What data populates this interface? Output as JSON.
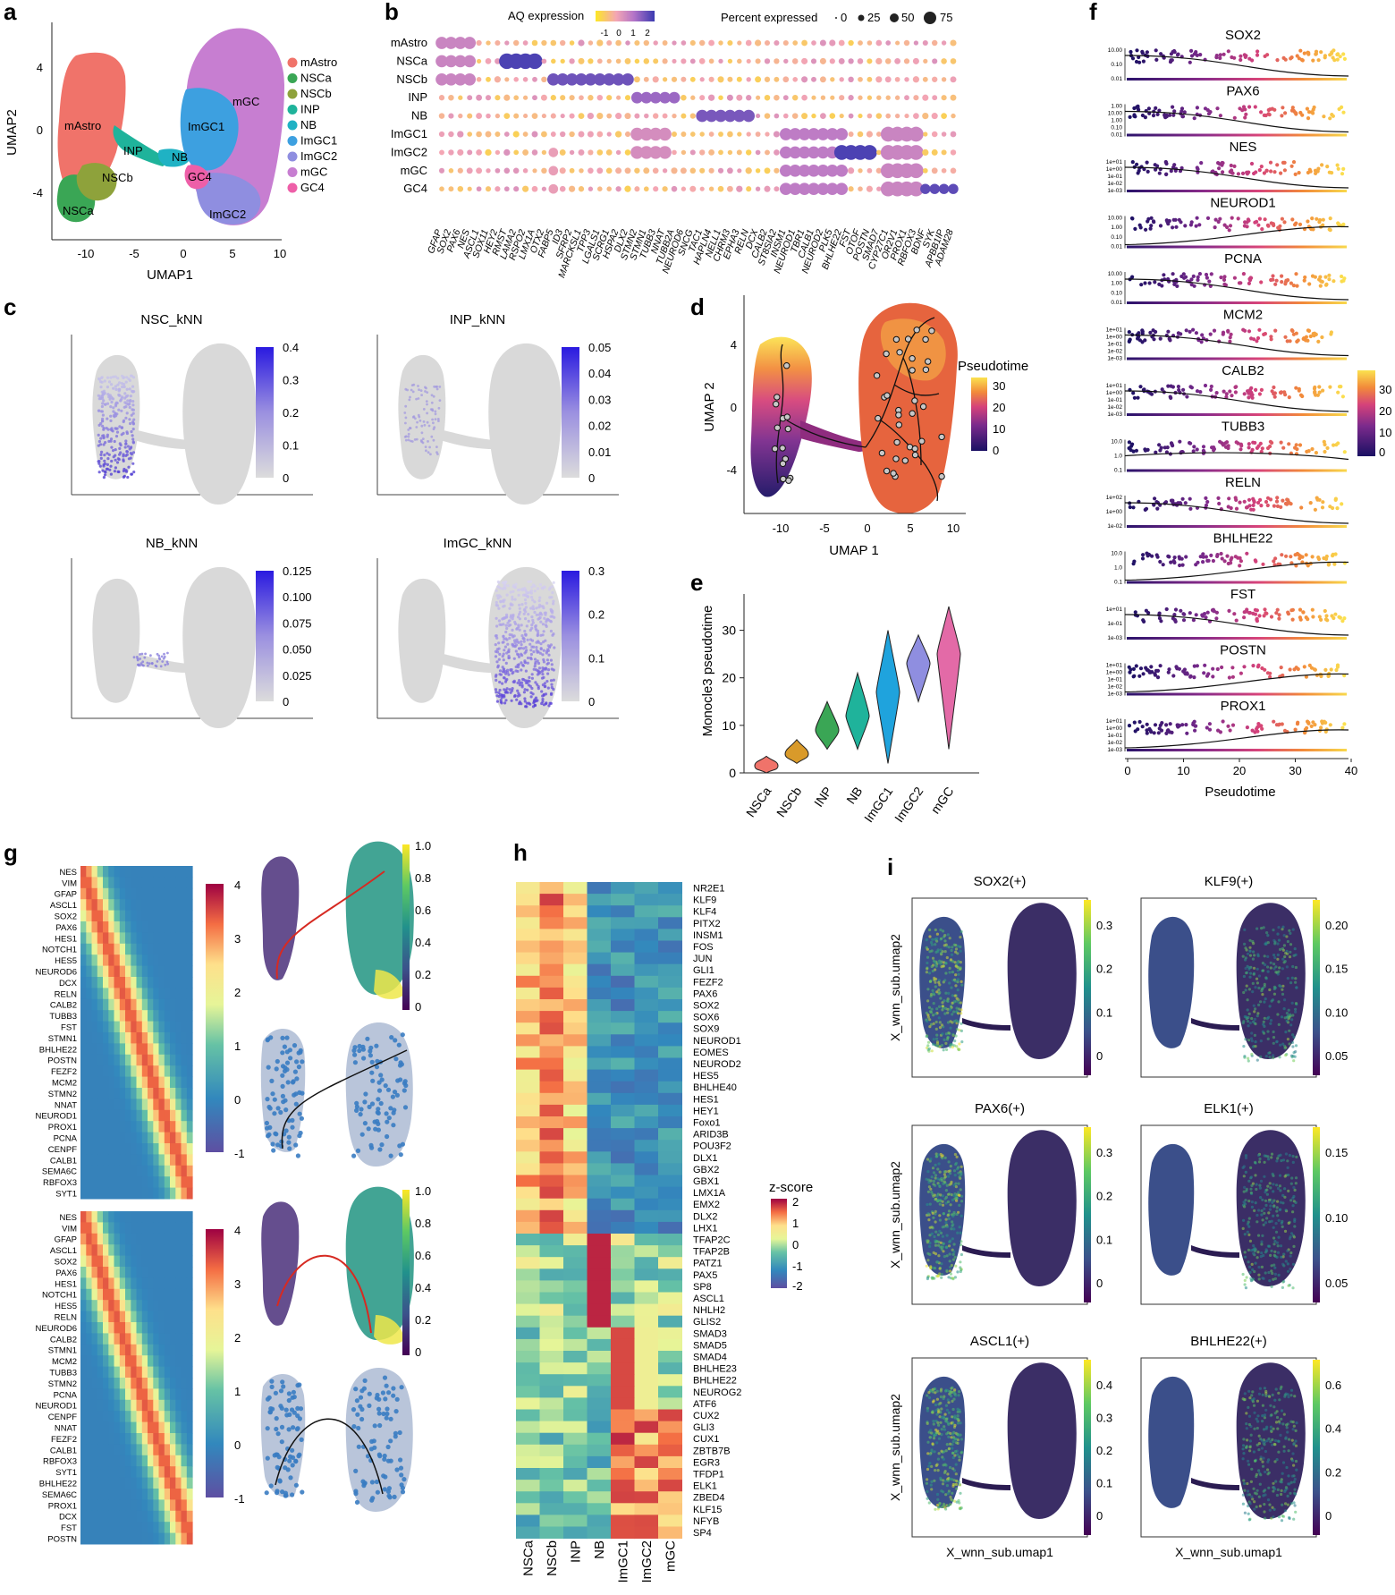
{
  "colors": {
    "mAstro": "#f0736a",
    "NSCa": "#3aa655",
    "NSCb": "#8ea23b",
    "INP": "#1fb39b",
    "NB": "#1fb2c4",
    "ImGC1": "#3da0e0",
    "ImGC2": "#8f8ee0",
    "mGC": "#c77ed1",
    "GC4": "#ee5fa8",
    "grey": "#d8d8d8",
    "knn_hi": "#3a2bdc",
    "pseudotime_low": "#1a1063",
    "pseudotime_high": "#fbe24f"
  },
  "panel_a": {
    "letter": "a",
    "xlabel": "UMAP1",
    "ylabel": "UMAP2",
    "xticks": [
      "-10",
      "-5",
      "0",
      "5",
      "10"
    ],
    "yticks": [
      "4",
      "0",
      "-4"
    ],
    "cluster_labels": [
      "mAstro",
      "NSCb",
      "INP",
      "NB",
      "ImGC1",
      "mGC",
      "GC4",
      "NSCa",
      "ImGC2"
    ],
    "legend": [
      "mAstro",
      "NSCa",
      "NSCb",
      "INP",
      "NB",
      "ImGC1",
      "ImGC2",
      "mGC",
      "GC4"
    ]
  },
  "panel_b": {
    "letter": "b",
    "color_title": "AQ expression",
    "color_ticks": [
      "-1",
      "0",
      "1",
      "2"
    ],
    "size_title": "Percent expressed",
    "size_ticks": [
      "0",
      "25",
      "50",
      "75"
    ],
    "rows": [
      "mAstro",
      "NSCa",
      "NSCb",
      "INP",
      "NB",
      "ImGC1",
      "ImGC2",
      "mGC",
      "GC4"
    ],
    "genes": [
      "GFAP",
      "SOX2",
      "PAX6",
      "NES",
      "ASCL1",
      "SOX11",
      "HEY2",
      "RMST",
      "LAMA2",
      "RSPO2",
      "LMX1A",
      "OTX2",
      "FABP5",
      "ID3",
      "SFRP2",
      "MARCKSL1",
      "TPP3",
      "LGALS1",
      "SCRG1",
      "HSPA2",
      "DLX2",
      "STMN2",
      "STMN1",
      "TUBB3",
      "NNAT",
      "TUBB2A",
      "NEUROD6",
      "SNCG",
      "TAC1",
      "HAPLN4",
      "NELL1",
      "CHRM3",
      "EPHA3",
      "RELN",
      "DCX",
      "CALB2",
      "ST8SIA2",
      "INSM1",
      "NEUROD1",
      "TBR1",
      "CALB1",
      "NEUROD2",
      "PLK5",
      "BHLHE22",
      "FST",
      "OTOF",
      "POSTN",
      "SMAD7",
      "CYP27C1",
      "OR2V1",
      "PROX1",
      "RBFOX3",
      "BDNF",
      "SYK",
      "APBB1IP",
      "ADAM28"
    ]
  },
  "panel_c": {
    "letter": "c",
    "maps": [
      {
        "title": "NSC_kNN",
        "ticks": [
          "0.4",
          "0.3",
          "0.2",
          "0.1",
          "0"
        ]
      },
      {
        "title": "INP_kNN",
        "ticks": [
          "0.05",
          "0.04",
          "0.03",
          "0.02",
          "0.01",
          "0"
        ]
      },
      {
        "title": "NB_kNN",
        "ticks": [
          "0.125",
          "0.100",
          "0.075",
          "0.050",
          "0.025",
          "0"
        ]
      },
      {
        "title": "ImGC_kNN",
        "ticks": [
          "0.3",
          "0.2",
          "0.1",
          "0"
        ]
      }
    ]
  },
  "panel_d": {
    "letter": "d",
    "xlabel": "UMAP 1",
    "ylabel": "UMAP 2",
    "xticks": [
      "-10",
      "-5",
      "0",
      "5",
      "10"
    ],
    "yticks": [
      "4",
      "0",
      "-4"
    ],
    "legend_title": "Pseudotime",
    "legend_ticks": [
      "30",
      "20",
      "10",
      "0"
    ]
  },
  "panel_e": {
    "letter": "e",
    "ylabel": "Monocle3 pseudotime",
    "yticks": [
      "0",
      "10",
      "20",
      "30"
    ]
  },
  "panel_f": {
    "letter": "f",
    "xlabel": "Pseudotime",
    "xticks": [
      "0",
      "10",
      "20",
      "30",
      "40"
    ],
    "legend_ticks": [
      "30",
      "20",
      "10",
      "0"
    ],
    "tracks": [
      {
        "gene": "SOX2",
        "yt": [
          "10.00",
          "0.10",
          "0.01"
        ]
      },
      {
        "gene": "PAX6",
        "yt": [
          "1.00",
          "10.00",
          "1.00",
          "0.10",
          "0.01"
        ]
      },
      {
        "gene": "NES",
        "yt": [
          "1e+01",
          "1e+00",
          "1e-01",
          "1e-02",
          "1e-03"
        ]
      },
      {
        "gene": "NEUROD1",
        "yt": [
          "10.00",
          "1.00",
          "0.10",
          "0.01"
        ]
      },
      {
        "gene": "PCNA",
        "yt": [
          "10.00",
          "1.00",
          "0.10",
          "0.01"
        ]
      },
      {
        "gene": "MCM2",
        "yt": [
          "1e+01",
          "1e+00",
          "1e-01",
          "1e-02",
          "1e-03"
        ]
      },
      {
        "gene": "CALB2",
        "yt": [
          "1e+01",
          "1e+00",
          "1e-01",
          "1e-02",
          "1e-03"
        ]
      },
      {
        "gene": "TUBB3",
        "yt": [
          "10.0",
          "1.0",
          "0.1"
        ]
      },
      {
        "gene": "RELN",
        "yt": [
          "1e+02",
          "1e+00",
          "1e-02"
        ]
      },
      {
        "gene": "BHLHE22",
        "yt": [
          "10.0",
          "1.0",
          "0.1"
        ]
      },
      {
        "gene": "FST",
        "yt": [
          "1e+01",
          "1e-01",
          "1e-03"
        ]
      },
      {
        "gene": "POSTN",
        "yt": [
          "1e+01",
          "1e+00",
          "1e-01",
          "1e-02",
          "1e-03"
        ]
      },
      {
        "gene": "PROX1",
        "yt": [
          "1e+01",
          "1e+00",
          "1e-01",
          "1e-02",
          "1e-03"
        ]
      }
    ]
  },
  "panel_g": {
    "letter": "g",
    "genes_top": [
      "NES",
      "VIM",
      "GFAP",
      "ASCL1",
      "SOX2",
      "PAX6",
      "HES1",
      "NOTCH1",
      "HES5",
      "NEUROD6",
      "DCX",
      "RELN",
      "CALB2",
      "TUBB3",
      "FST",
      "STMN1",
      "BHLHE22",
      "POSTN",
      "FEZF2",
      "MCM2",
      "STMN2",
      "NNAT",
      "NEUROD1",
      "PROX1",
      "PCNA",
      "CENPF",
      "CALB1",
      "SEMA6C",
      "RBFOX3",
      "SYT1"
    ],
    "genes_bottom": [
      "NES",
      "VIM",
      "GFAP",
      "ASCL1",
      "SOX2",
      "PAX6",
      "HES1",
      "NOTCH1",
      "HES5",
      "RELN",
      "NEUROD6",
      "CALB2",
      "STMN1",
      "MCM2",
      "TUBB3",
      "STMN2",
      "PCNA",
      "NEUROD1",
      "CENPF",
      "NNAT",
      "FEZF2",
      "CALB1",
      "RBFOX3",
      "SYT1",
      "BHLHE22",
      "SEMA6C",
      "PROX1",
      "DCX",
      "FST",
      "POSTN"
    ],
    "heat_ticks": [
      "4",
      "3",
      "2",
      "1",
      "0",
      "-1"
    ],
    "umap_ticks": [
      "1.0",
      "0.8",
      "0.6",
      "0.4",
      "0.2",
      "0"
    ]
  },
  "panel_h": {
    "letter": "h",
    "columns": [
      "NSCa",
      "NSCb",
      "INP",
      "NB",
      "ImGC1",
      "ImGC2",
      "mGC"
    ],
    "tfs": [
      "NR2E1",
      "KLF9",
      "KLF4",
      "PITX2",
      "INSM1",
      "FOS",
      "JUN",
      "GLI1",
      "FEZF2",
      "PAX6",
      "SOX2",
      "SOX6",
      "SOX9",
      "NEUROD1",
      "EOMES",
      "NEUROD2",
      "HES5",
      "BHLHE40",
      "HES1",
      "HEY1",
      "Foxo1",
      "ARID3B",
      "POU3F2",
      "DLX1",
      "GBX2",
      "GBX1",
      "LMX1A",
      "EMX2",
      "DLX2",
      "LHX1",
      "TFAP2C",
      "TFAP2B",
      "PATZ1",
      "PAX5",
      "SP8",
      "ASCL1",
      "NHLH2",
      "GLIS2",
      "SMAD3",
      "SMAD5",
      "SMAD4",
      "BHLHE23",
      "BHLHE22",
      "NEUROG2",
      "ATF6",
      "CUX2",
      "GLI3",
      "CUX1",
      "ZBTB7B",
      "EGR3",
      "TFDP1",
      "ELK1",
      "ZBED4",
      "KLF15",
      "NFYB",
      "SP4"
    ],
    "legend_title": "z-score",
    "legend_ticks": [
      "2",
      "1",
      "0",
      "-1",
      "-2"
    ]
  },
  "panel_i": {
    "letter": "i",
    "ylabel": "X_wnn_sub.umap2",
    "xlabel": "X_wnn_sub.umap1",
    "maps": [
      {
        "title": "SOX2(+)",
        "ticks": [
          "0.3",
          "0.2",
          "0.1",
          "0"
        ]
      },
      {
        "title": "KLF9(+)",
        "ticks": [
          "0.20",
          "0.15",
          "0.10",
          "0.05"
        ]
      },
      {
        "title": "PAX6(+)",
        "ticks": [
          "0.3",
          "0.2",
          "0.1",
          "0"
        ]
      },
      {
        "title": "ELK1(+)",
        "ticks": [
          "0.15",
          "0.10",
          "0.05"
        ]
      },
      {
        "title": "ASCL1(+)",
        "ticks": [
          "0.4",
          "0.3",
          "0.2",
          "0.1",
          "0"
        ]
      },
      {
        "title": "BHLHE22(+)",
        "ticks": [
          "0.6",
          "0.4",
          "0.2",
          "0"
        ]
      }
    ]
  },
  "chart_data": [
    {
      "type": "scatter",
      "panel": "a",
      "xlabel": "UMAP1",
      "ylabel": "UMAP2",
      "xlim": [
        -13,
        10
      ],
      "ylim": [
        -7.5,
        6.5
      ],
      "series": [
        {
          "name": "mAstro"
        },
        {
          "name": "NSCa"
        },
        {
          "name": "NSCb"
        },
        {
          "name": "INP"
        },
        {
          "name": "NB"
        },
        {
          "name": "ImGC1"
        },
        {
          "name": "ImGC2"
        },
        {
          "name": "mGC"
        },
        {
          "name": "GC4"
        }
      ]
    },
    {
      "type": "heatmap",
      "panel": "b",
      "title": "AQ expression",
      "rows": [
        "mAstro",
        "NSCa",
        "NSCb",
        "INP",
        "NB",
        "ImGC1",
        "ImGC2",
        "mGC",
        "GC4"
      ],
      "color_range": [
        -1,
        2
      ],
      "size_legend": [
        0,
        25,
        50,
        75
      ]
    },
    {
      "type": "scatter",
      "panel": "d",
      "xlabel": "UMAP 1",
      "ylabel": "UMAP 2",
      "xlim": [
        -13,
        11
      ],
      "ylim": [
        -7,
        6.5
      ],
      "color_legend": "Pseudotime",
      "color_range": [
        0,
        30
      ]
    },
    {
      "type": "violin",
      "panel": "e",
      "ylabel": "Monocle3 pseudotime",
      "ylim": [
        0,
        35
      ],
      "categories": [
        "NSCa",
        "NSCb",
        "INP",
        "NB",
        "ImGC1",
        "ImGC2",
        "mGC"
      ],
      "medians": [
        1.5,
        4,
        9,
        12,
        17,
        23,
        25
      ],
      "ranges": [
        [
          0,
          3.5
        ],
        [
          2,
          7
        ],
        [
          5,
          15
        ],
        [
          5,
          21
        ],
        [
          2,
          30
        ],
        [
          15,
          29
        ],
        [
          5,
          35
        ]
      ]
    },
    {
      "type": "line",
      "panel": "f",
      "xlabel": "Pseudotime",
      "xlim": [
        0,
        40
      ],
      "genes": [
        "SOX2",
        "PAX6",
        "NES",
        "NEUROD1",
        "PCNA",
        "MCM2",
        "CALB2",
        "TUBB3",
        "RELN",
        "BHLHE22",
        "FST",
        "POSTN",
        "PROX1"
      ],
      "trend": [
        "down",
        "down",
        "down",
        "up",
        "down",
        "down",
        "down",
        "flat",
        "down",
        "up",
        "down",
        "up",
        "up"
      ]
    },
    {
      "type": "heatmap",
      "panel": "h",
      "columns": [
        "NSCa",
        "NSCb",
        "INP",
        "NB",
        "ImGC1",
        "ImGC2",
        "mGC"
      ],
      "color_legend": "z-score",
      "color_range": [
        -2,
        2
      ]
    }
  ]
}
